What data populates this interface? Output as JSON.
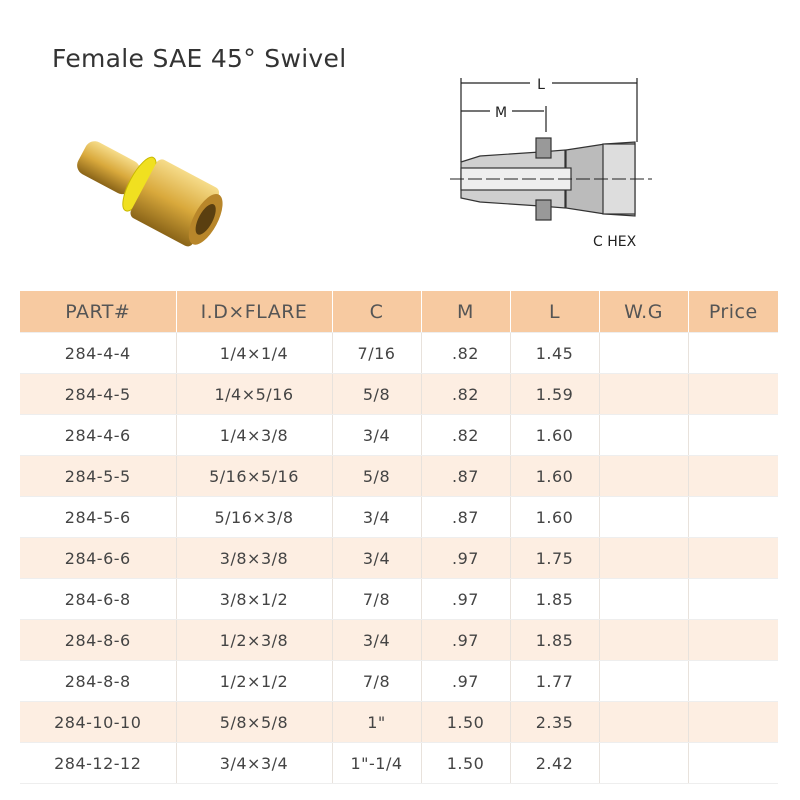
{
  "title": "Female SAE 45°  Swivel",
  "diagram": {
    "label_L": "L",
    "label_M": "M",
    "label_hex": "C HEX"
  },
  "colors": {
    "header_bg": "#f7caa1",
    "alt_row_bg": "#fdeee2",
    "brass": "#d9a93c",
    "collar": "#f0e020"
  },
  "table": {
    "headers": [
      "PART#",
      "I.D×FLARE",
      "C",
      "M",
      "L",
      "W.G",
      "Price"
    ],
    "rows": [
      [
        "284-4-4",
        "1/4×1/4",
        "7/16",
        ".82",
        "1.45",
        "",
        ""
      ],
      [
        "284-4-5",
        "1/4×5/16",
        "5/8",
        ".82",
        "1.59",
        "",
        ""
      ],
      [
        "284-4-6",
        "1/4×3/8",
        "3/4",
        ".82",
        "1.60",
        "",
        ""
      ],
      [
        "284-5-5",
        "5/16×5/16",
        "5/8",
        ".87",
        "1.60",
        "",
        ""
      ],
      [
        "284-5-6",
        "5/16×3/8",
        "3/4",
        ".87",
        "1.60",
        "",
        ""
      ],
      [
        "284-6-6",
        "3/8×3/8",
        "3/4",
        ".97",
        "1.75",
        "",
        ""
      ],
      [
        "284-6-8",
        "3/8×1/2",
        "7/8",
        ".97",
        "1.85",
        "",
        ""
      ],
      [
        "284-8-6",
        "1/2×3/8",
        "3/4",
        ".97",
        "1.85",
        "",
        ""
      ],
      [
        "284-8-8",
        "1/2×1/2",
        "7/8",
        ".97",
        "1.77",
        "",
        ""
      ],
      [
        "284-10-10",
        "5/8×5/8",
        "1\"",
        "1.50",
        "2.35",
        "",
        ""
      ],
      [
        "284-12-12",
        "3/4×3/4",
        "1\"-1/4",
        "1.50",
        "2.42",
        "",
        ""
      ]
    ]
  }
}
